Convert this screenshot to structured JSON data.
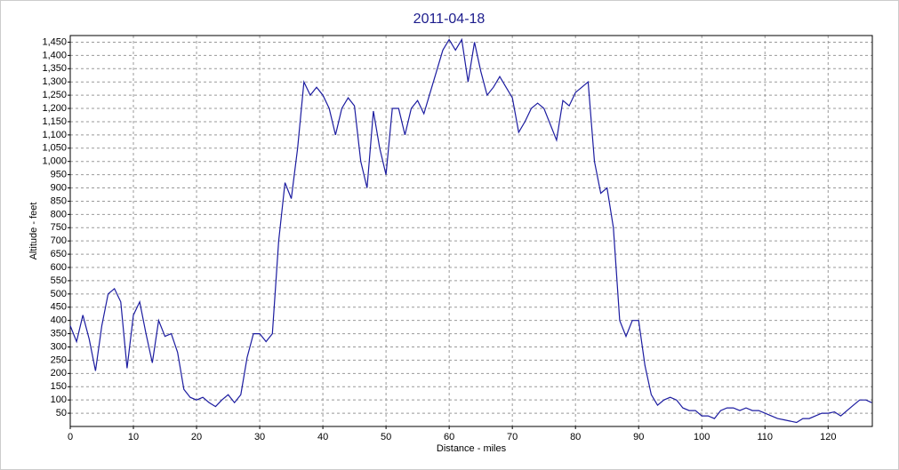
{
  "chart_data": {
    "type": "line",
    "title": "2011-04-18",
    "x_label": "Distance - miles",
    "y_label": "Altitude - feet",
    "x": [
      0,
      1,
      2,
      3,
      4,
      5,
      6,
      7,
      8,
      9,
      10,
      11,
      12,
      13,
      14,
      15,
      16,
      17,
      18,
      19,
      20,
      21,
      22,
      23,
      24,
      25,
      26,
      27,
      28,
      29,
      30,
      31,
      32,
      33,
      34,
      35,
      36,
      37,
      38,
      39,
      40,
      41,
      42,
      43,
      44,
      45,
      46,
      47,
      48,
      49,
      50,
      51,
      52,
      53,
      54,
      55,
      56,
      57,
      58,
      59,
      60,
      61,
      62,
      63,
      64,
      65,
      66,
      67,
      68,
      69,
      70,
      71,
      72,
      73,
      74,
      75,
      76,
      77,
      78,
      79,
      80,
      81,
      82,
      83,
      84,
      85,
      86,
      87,
      88,
      89,
      90,
      91,
      92,
      93,
      94,
      95,
      96,
      97,
      98,
      99,
      100,
      101,
      102,
      103,
      104,
      105,
      106,
      107,
      108,
      109,
      110,
      111,
      112,
      113,
      114,
      115,
      116,
      117,
      118,
      119,
      120,
      121,
      122,
      123,
      124,
      125,
      126,
      126.9
    ],
    "series": [
      {
        "name": "Altitude",
        "color": "#1c1ca0",
        "values": [
          380,
          320,
          420,
          330,
          210,
          380,
          500,
          520,
          470,
          220,
          420,
          470,
          350,
          240,
          400,
          340,
          350,
          280,
          140,
          110,
          100,
          110,
          90,
          75,
          100,
          120,
          90,
          120,
          260,
          350,
          350,
          320,
          350,
          700,
          920,
          860,
          1050,
          1300,
          1250,
          1280,
          1250,
          1200,
          1100,
          1200,
          1240,
          1210,
          1000,
          900,
          1190,
          1050,
          950,
          1200,
          1200,
          1100,
          1200,
          1230,
          1180,
          1260,
          1340,
          1420,
          1460,
          1420,
          1460,
          1300,
          1450,
          1340,
          1250,
          1280,
          1320,
          1280,
          1240,
          1110,
          1150,
          1200,
          1220,
          1200,
          1140,
          1080,
          1230,
          1210,
          1260,
          1280,
          1300,
          1000,
          880,
          900,
          750,
          400,
          340,
          400,
          400,
          230,
          120,
          80,
          100,
          110,
          100,
          70,
          60,
          60,
          40,
          40,
          30,
          60,
          70,
          70,
          60,
          70,
          60,
          60,
          50,
          40,
          30,
          25,
          20,
          15,
          30,
          30,
          40,
          50,
          50,
          55,
          40,
          60,
          80,
          100,
          100,
          90
        ]
      }
    ],
    "xlim": [
      0,
      127
    ],
    "ylim": [
      0,
      1475
    ],
    "xticks": [
      0,
      10,
      20,
      30,
      40,
      50,
      60,
      70,
      80,
      90,
      100,
      110,
      120
    ],
    "yticks": [
      50,
      100,
      150,
      200,
      250,
      300,
      350,
      400,
      450,
      500,
      550,
      600,
      650,
      700,
      750,
      800,
      850,
      900,
      950,
      {
        "value": 1000,
        "label": "1,000"
      },
      {
        "value": 1050,
        "label": "1,050"
      },
      {
        "value": 1100,
        "label": "1,100"
      },
      {
        "value": 1150,
        "label": "1,150"
      },
      {
        "value": 1200,
        "label": "1,200"
      },
      {
        "value": 1250,
        "label": "1,250"
      },
      {
        "value": 1300,
        "label": "1,300"
      },
      {
        "value": 1350,
        "label": "1,350"
      },
      {
        "value": 1400,
        "label": "1,400"
      },
      {
        "value": 1450,
        "label": "1,450"
      }
    ],
    "grid": true
  }
}
